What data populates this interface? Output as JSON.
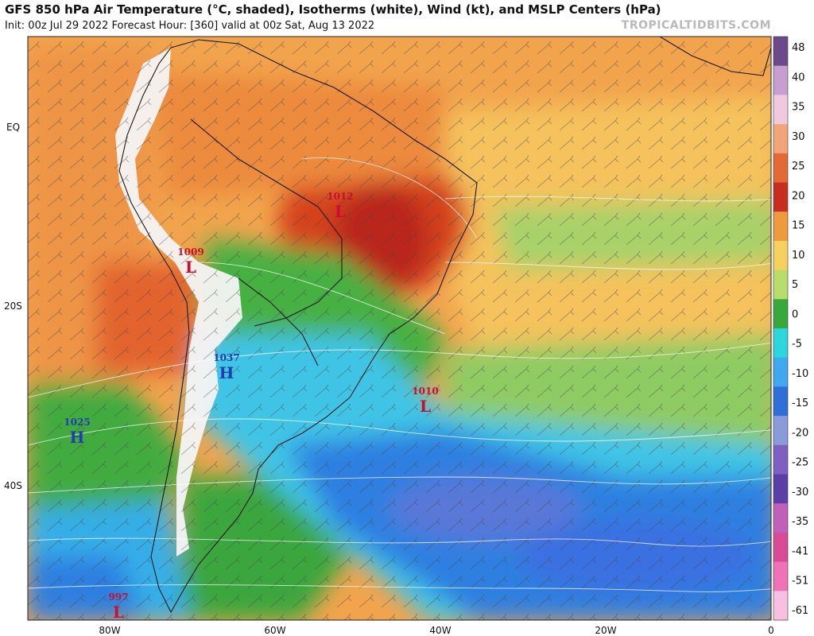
{
  "header": {
    "title": "GFS 850 hPa Air Temperature (°C, shaded), Isotherms (white), Wind (kt), and MSLP Centers (hPa)",
    "subtitle": "Init: 00z Jul 29 2022   Forecast Hour: [360]   valid at 00z Sat, Aug 13 2022",
    "credit": "TROPICALTIDBITS.COM"
  },
  "axes": {
    "x_ticks": [
      "80W",
      "60W",
      "40W",
      "20W",
      "0"
    ],
    "y_ticks": [
      "EQ",
      "20S",
      "40S"
    ]
  },
  "colorbar": {
    "labels": [
      "48",
      "40",
      "35",
      "30",
      "25",
      "20",
      "15",
      "10",
      "5",
      "0",
      "-5",
      "-10",
      "-15",
      "-20",
      "-25",
      "-30",
      "-35",
      "-41",
      "-51",
      "-61"
    ],
    "colors": [
      "#6b4a8c",
      "#c79fcf",
      "#f0c8e0",
      "#f3a57a",
      "#e36b33",
      "#c82e1f",
      "#f09a3e",
      "#f7d15e",
      "#b8dd6a",
      "#37a83a",
      "#2bd6dc",
      "#3fa8ef",
      "#2f6fd7",
      "#8a9bd9",
      "#7f5fc1",
      "#5b3ea6",
      "#c060b8",
      "#d94b97",
      "#f072b6",
      "#f7bfe0"
    ]
  },
  "pressure_centers": [
    {
      "type": "L",
      "value": "1012",
      "color": "#c8102e"
    },
    {
      "type": "L",
      "value": "1009",
      "color": "#c8102e"
    },
    {
      "type": "H",
      "value": "1037",
      "color": "#1f3fb0"
    },
    {
      "type": "L",
      "value": "1010",
      "color": "#c8102e"
    },
    {
      "type": "H",
      "value": "1025",
      "color": "#1f3fb0"
    },
    {
      "type": "L",
      "value": "997",
      "color": "#c8102e"
    }
  ]
}
